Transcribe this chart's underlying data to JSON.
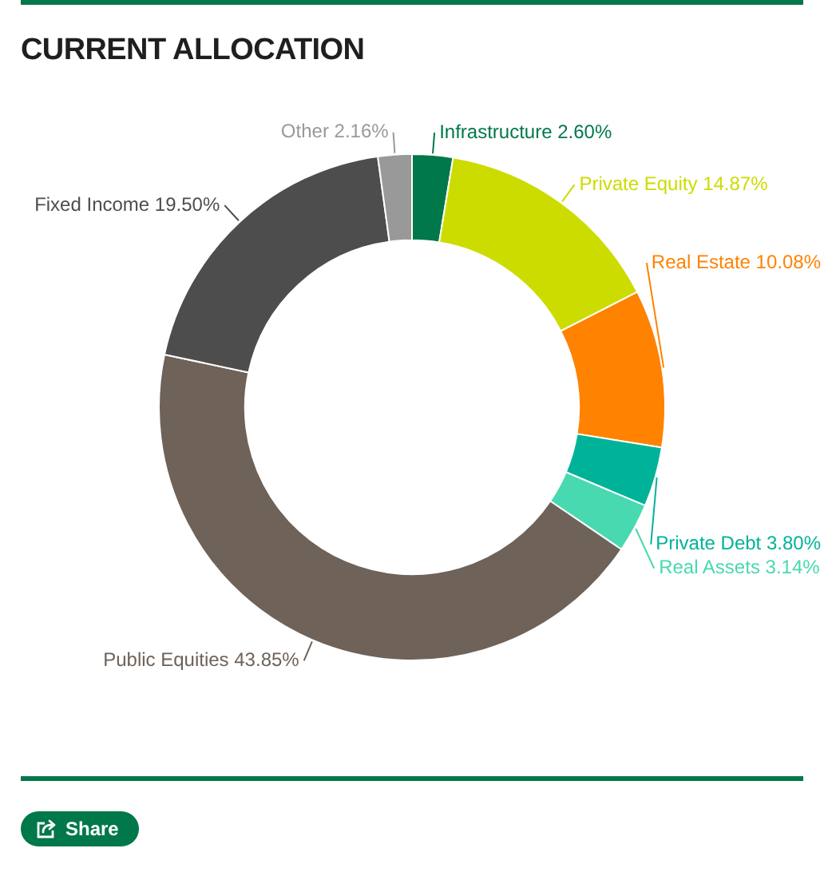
{
  "chart_data": {
    "type": "donut",
    "title": "CURRENT ALLOCATION",
    "categories": [
      "Infrastructure",
      "Private Equity",
      "Real Estate",
      "Private Debt",
      "Real Assets",
      "Public Equities",
      "Fixed Income",
      "Other"
    ],
    "values": [
      2.6,
      14.87,
      10.08,
      3.8,
      3.14,
      43.85,
      19.5,
      2.16
    ],
    "value_labels": [
      "2.60%",
      "14.87%",
      "10.08%",
      "3.80%",
      "3.14%",
      "43.85%",
      "19.50%",
      "2.16%"
    ],
    "colors": [
      "#00784a",
      "#cddc00",
      "#ff8200",
      "#00b398",
      "#48d9b0",
      "#6e6259",
      "#4d4d4d",
      "#999999"
    ],
    "annotations": [
      "Share"
    ]
  }
}
